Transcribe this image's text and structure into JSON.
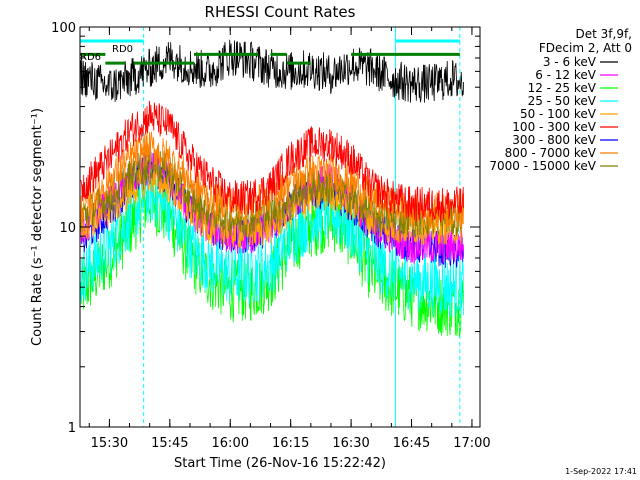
{
  "chart_data": {
    "type": "line",
    "title": "RHESSI Count Rates",
    "xlabel": "Start Time (26-Nov-16 15:22:42)",
    "ylabel": "Count Rate (s⁻¹ detector segment⁻¹)",
    "y_scale": "log",
    "ylim": [
      1,
      100
    ],
    "xlim": [
      "15:22:42",
      "17:02:00"
    ],
    "x_ticks": [
      "15:30",
      "15:45",
      "16:00",
      "16:15",
      "16:30",
      "16:45",
      "17:00"
    ],
    "y_ticks": [
      "1",
      "10",
      "100"
    ],
    "grid": false,
    "legend_position": "top-right",
    "legend_header": [
      "Det 3f,9f,",
      "FDecim 2, Att 0"
    ],
    "footer_date": "1-Sep-2022 17:41",
    "series": [
      {
        "name": "3 - 6 keV",
        "color": "#000000",
        "x": [
          "15:22",
          "15:30",
          "15:35",
          "15:40",
          "15:45",
          "15:50",
          "15:55",
          "16:00",
          "16:05",
          "16:10",
          "16:15",
          "16:20",
          "16:25",
          "16:30",
          "16:35",
          "16:40",
          "16:45",
          "16:50",
          "16:55",
          "16:58"
        ],
        "values": [
          58,
          50,
          55,
          62,
          70,
          63,
          60,
          72,
          68,
          62,
          60,
          62,
          58,
          65,
          62,
          55,
          52,
          52,
          55,
          52
        ]
      },
      {
        "name": "6 - 12 keV",
        "color": "#ff00ff",
        "x": [
          "15:22",
          "15:30",
          "15:35",
          "15:40",
          "15:45",
          "15:50",
          "15:55",
          "16:00",
          "16:05",
          "16:10",
          "16:15",
          "16:20",
          "16:25",
          "16:30",
          "16:35",
          "16:40",
          "16:45",
          "16:50",
          "16:55",
          "16:58"
        ],
        "values": [
          9,
          13,
          17,
          21,
          17,
          12,
          10,
          9,
          9,
          10,
          13,
          16,
          17,
          14,
          10,
          9,
          8,
          8,
          8,
          8
        ]
      },
      {
        "name": "12 - 25 keV",
        "color": "#00ff00",
        "x": [
          "15:22",
          "15:30",
          "15:35",
          "15:40",
          "15:45",
          "15:50",
          "15:55",
          "16:00",
          "16:05",
          "16:10",
          "16:15",
          "16:20",
          "16:25",
          "16:30",
          "16:35",
          "16:40",
          "16:45",
          "16:50",
          "16:55",
          "16:58"
        ],
        "values": [
          4.5,
          7,
          10,
          14,
          11,
          7,
          5.5,
          4.8,
          4.8,
          5.5,
          8,
          10,
          11,
          9,
          6,
          5,
          4.5,
          4.2,
          4,
          4.2
        ]
      },
      {
        "name": "25 - 50 keV",
        "color": "#00ffff",
        "x": [
          "15:22",
          "15:30",
          "15:35",
          "15:40",
          "15:45",
          "15:50",
          "15:55",
          "16:00",
          "16:05",
          "16:10",
          "16:15",
          "16:20",
          "16:25",
          "16:30",
          "16:35",
          "16:40",
          "16:45",
          "16:50",
          "16:55",
          "16:58"
        ],
        "values": [
          5.5,
          8,
          11,
          15,
          12,
          8,
          6.5,
          5.8,
          5.8,
          6.5,
          9,
          11,
          12,
          10,
          7,
          6,
          5.5,
          5.2,
          5,
          5.2
        ]
      },
      {
        "name": "50 - 100 keV",
        "color": "#ffa500",
        "x": [
          "15:22",
          "15:30",
          "15:35",
          "15:40",
          "15:45",
          "15:50",
          "15:55",
          "16:00",
          "16:05",
          "16:10",
          "16:15",
          "16:20",
          "16:25",
          "16:30",
          "16:35",
          "16:40",
          "16:45",
          "16:50",
          "16:55",
          "16:58"
        ],
        "values": [
          10,
          12,
          15,
          18,
          16,
          12,
          10,
          9.5,
          9.5,
          10,
          12,
          14,
          15,
          13,
          11,
          10,
          10,
          10,
          10,
          10
        ]
      },
      {
        "name": "100 - 300 keV",
        "color": "#ff0000",
        "x": [
          "15:22",
          "15:30",
          "15:35",
          "15:40",
          "15:45",
          "15:50",
          "15:55",
          "16:00",
          "16:05",
          "16:10",
          "16:15",
          "16:20",
          "16:25",
          "16:30",
          "16:35",
          "16:40",
          "16:45",
          "16:50",
          "16:55",
          "16:58"
        ],
        "values": [
          15,
          22,
          30,
          36,
          32,
          22,
          17,
          14,
          14,
          16,
          22,
          26,
          26,
          22,
          16,
          14,
          13,
          13,
          13,
          13
        ]
      },
      {
        "name": "300 - 800 keV",
        "color": "#0000ff",
        "x": [
          "15:22",
          "15:30",
          "15:35",
          "15:40",
          "15:45",
          "15:50",
          "15:55",
          "16:00",
          "16:05",
          "16:10",
          "16:15",
          "16:20",
          "16:25",
          "16:30",
          "16:35",
          "16:40",
          "16:45",
          "16:50",
          "16:55",
          "16:58"
        ],
        "values": [
          8,
          12,
          16,
          20,
          17,
          12,
          10,
          9,
          9,
          10,
          13,
          15,
          15,
          13,
          10,
          9,
          8,
          8,
          7.5,
          7.5
        ]
      },
      {
        "name": "800 - 7000 keV",
        "color": "#ff7f00",
        "x": [
          "15:22",
          "15:30",
          "15:35",
          "15:40",
          "15:45",
          "15:50",
          "15:55",
          "16:00",
          "16:05",
          "16:10",
          "16:15",
          "16:20",
          "16:25",
          "16:30",
          "16:35",
          "16:40",
          "16:45",
          "16:50",
          "16:55",
          "16:58"
        ],
        "values": [
          12,
          17,
          22,
          25,
          22,
          17,
          14,
          13,
          13,
          14,
          17,
          19,
          19,
          17,
          14,
          13,
          12,
          12,
          12,
          12
        ]
      },
      {
        "name": "7000 - 15000 keV",
        "color": "#808000",
        "x": [
          "15:22",
          "15:30",
          "15:35",
          "15:40",
          "15:45",
          "15:50",
          "15:55",
          "16:00",
          "16:05",
          "16:10",
          "16:15",
          "16:20",
          "16:25",
          "16:30",
          "16:35",
          "16:40",
          "16:45",
          "16:50",
          "16:55",
          "16:58"
        ],
        "values": [
          11,
          14,
          18,
          21,
          19,
          14,
          12,
          11,
          11,
          12,
          14,
          16,
          16,
          14,
          12,
          11,
          11,
          11,
          11,
          11
        ]
      }
    ],
    "annotations": [
      {
        "text": "RD0",
        "color": "#007f00"
      },
      {
        "text": "RD6",
        "color": "#007f00"
      }
    ],
    "markers": {
      "cyan_solid_lines": [
        "15:22:42",
        "16:41:00"
      ],
      "cyan_dashed_lines": [
        "15:38:30",
        "16:57:00"
      ],
      "cyan_bars_top": [
        [
          "15:22:42",
          "15:38:30"
        ],
        [
          "16:41:00",
          "16:57:00"
        ]
      ],
      "green_bars": [
        {
          "y": 73,
          "ranges": [
            [
              "15:22:42",
              "15:29:00"
            ],
            [
              "15:51:00",
              "16:07:00"
            ],
            [
              "16:10:00",
              "16:14:00"
            ],
            [
              "16:30:00",
              "16:57:00"
            ]
          ]
        },
        {
          "y": 66,
          "ranges": [
            [
              "15:29:00",
              "15:34:00"
            ],
            [
              "15:36:00",
              "15:51:00"
            ],
            [
              "16:14:00",
              "16:20:00"
            ]
          ]
        }
      ]
    }
  }
}
